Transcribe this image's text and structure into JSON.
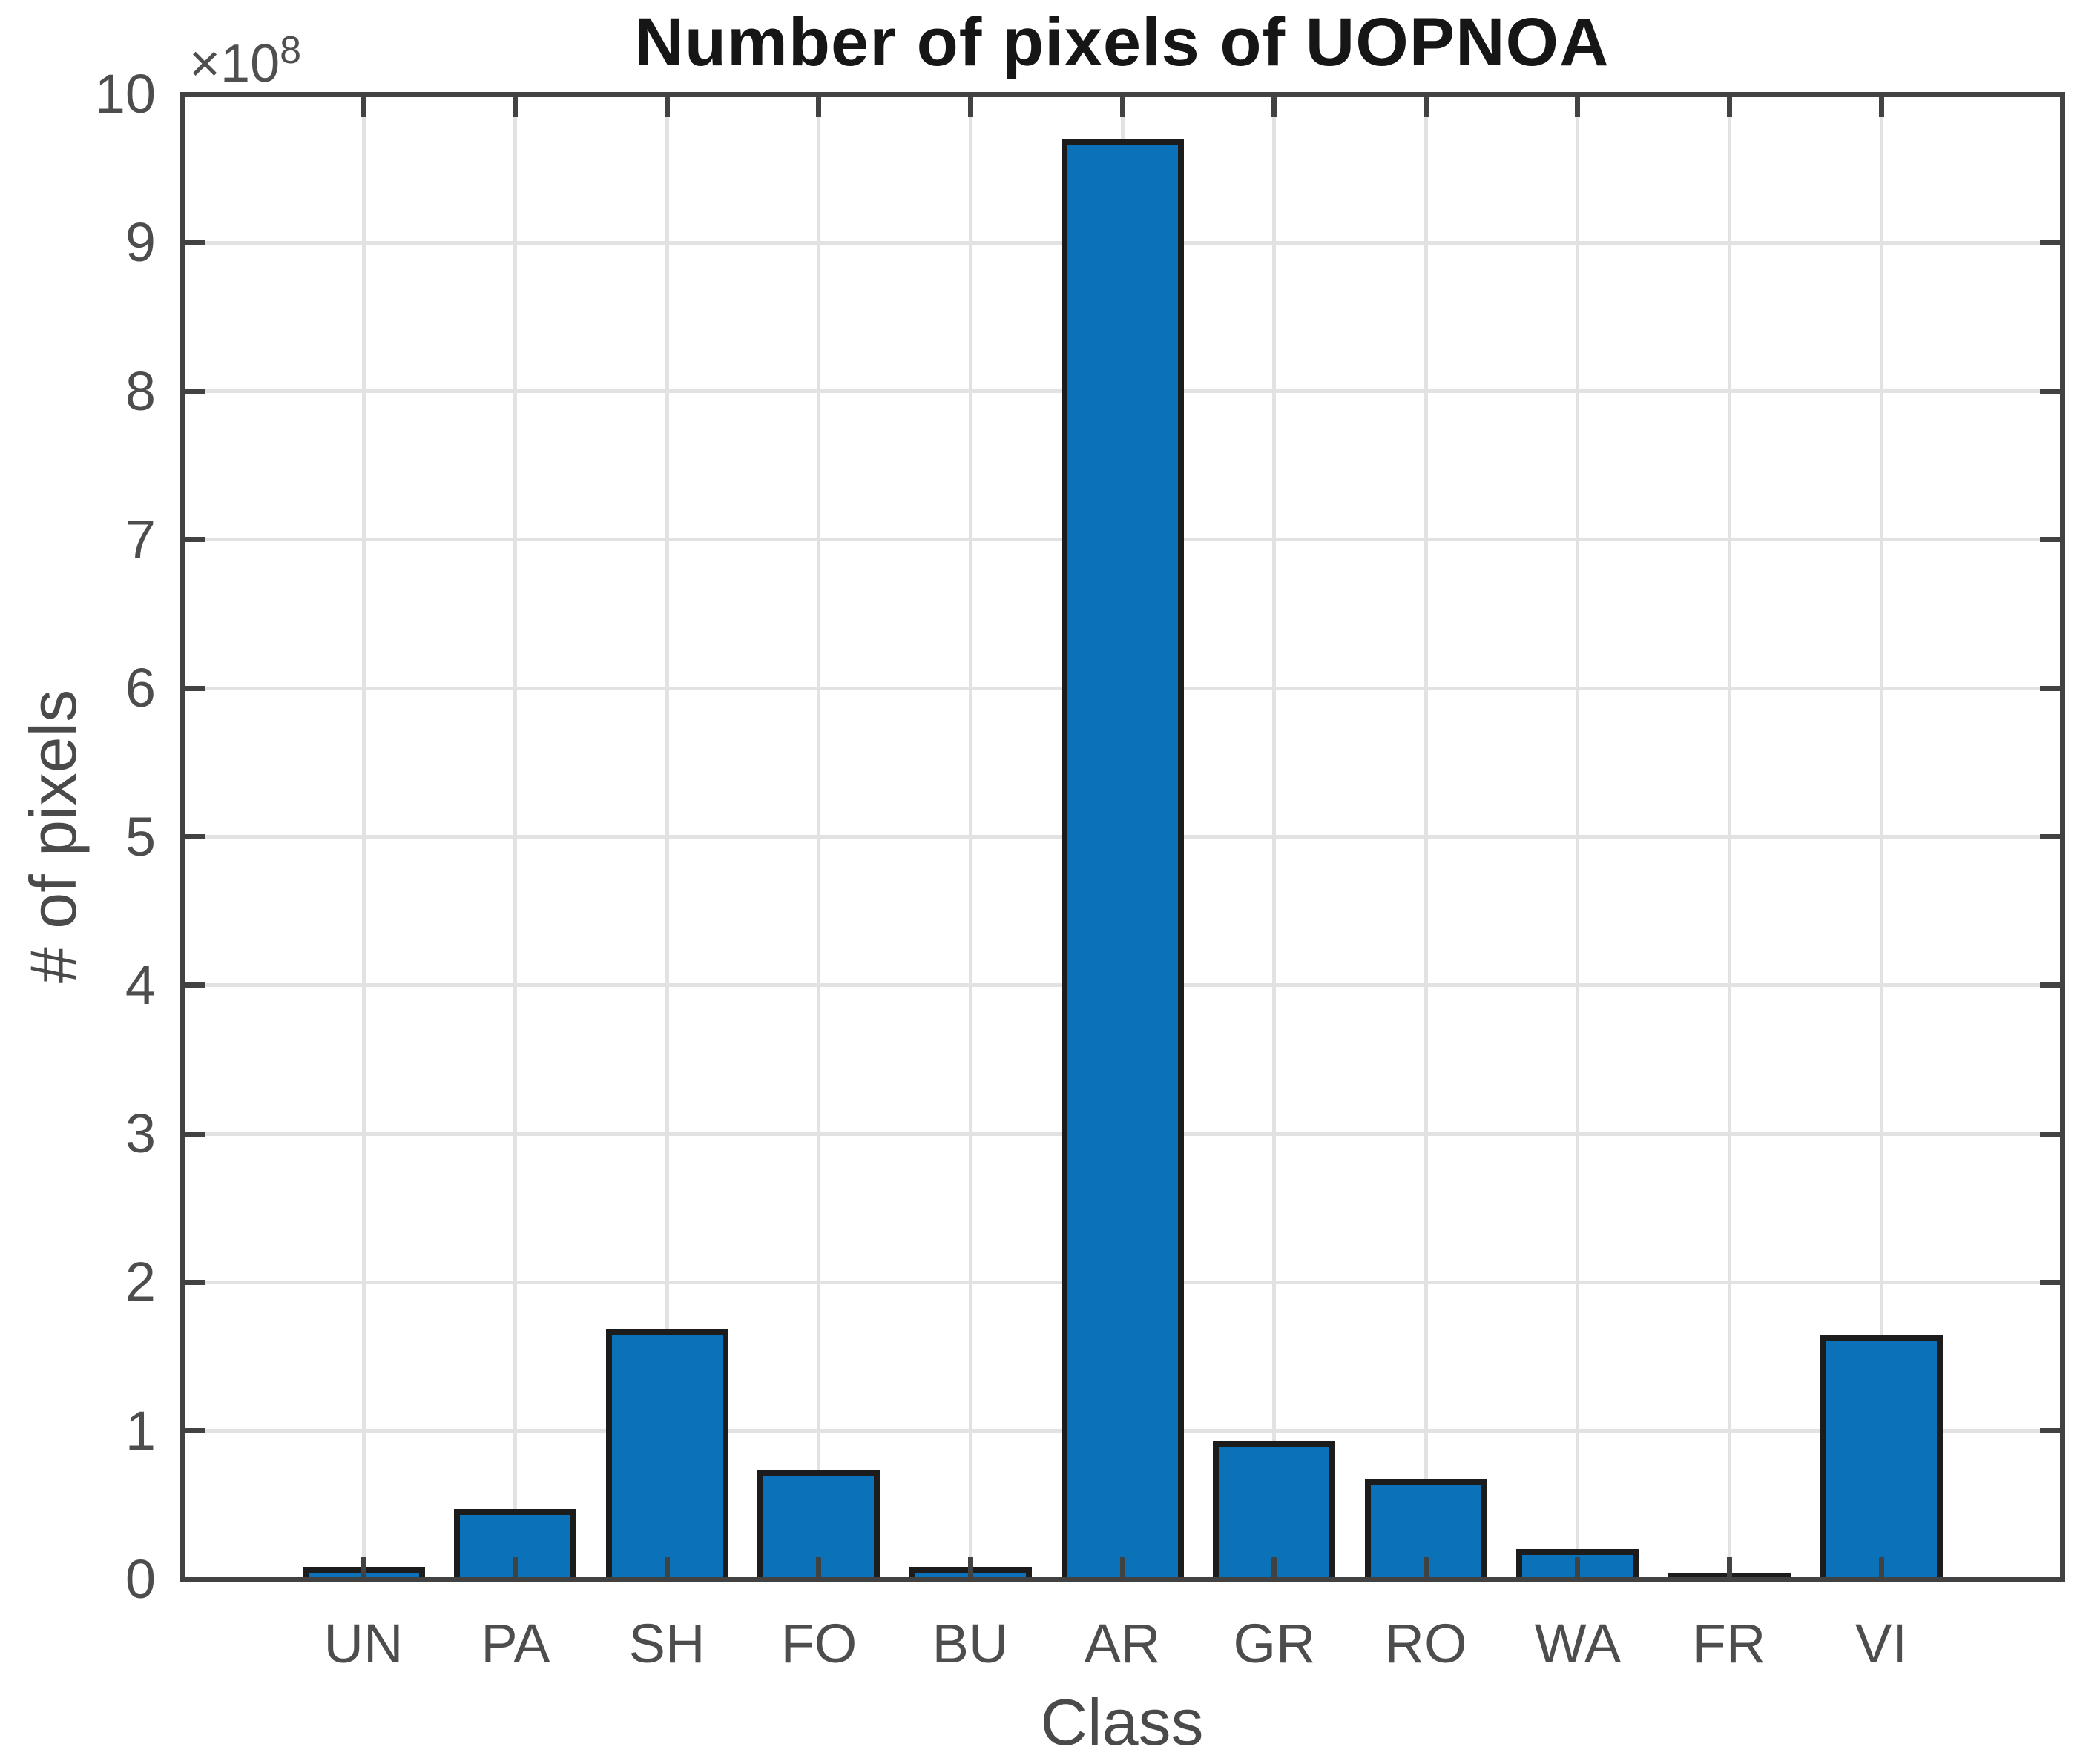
{
  "title": "Number of pixels of UOPNOA",
  "chart_data": {
    "type": "bar",
    "title": "Number of pixels of UOPNOA",
    "xlabel": "Class",
    "ylabel": "# of pixels",
    "y_axis_exponent_base": "×10",
    "y_axis_exponent_sup": "8",
    "categories": [
      "UN",
      "PA",
      "SH",
      "FO",
      "BU",
      "AR",
      "GR",
      "RO",
      "WA",
      "FR",
      "VI"
    ],
    "values_x1e8": [
      0.08,
      0.47,
      1.68,
      0.73,
      0.08,
      9.69,
      0.93,
      0.67,
      0.2,
      0.04,
      1.64
    ],
    "y_ticks": [
      0,
      1,
      2,
      3,
      4,
      5,
      6,
      7,
      8,
      9,
      10
    ],
    "ylim": [
      0,
      10
    ],
    "grid": true,
    "legend": "none",
    "bar_color": "#0b72b9",
    "bar_edge_color": "#1c1c1c",
    "axis_color": "#424242",
    "grid_color": "#e2e2e2",
    "tick_label_color": "#4d4d4d",
    "background_color": "#ffffff"
  }
}
